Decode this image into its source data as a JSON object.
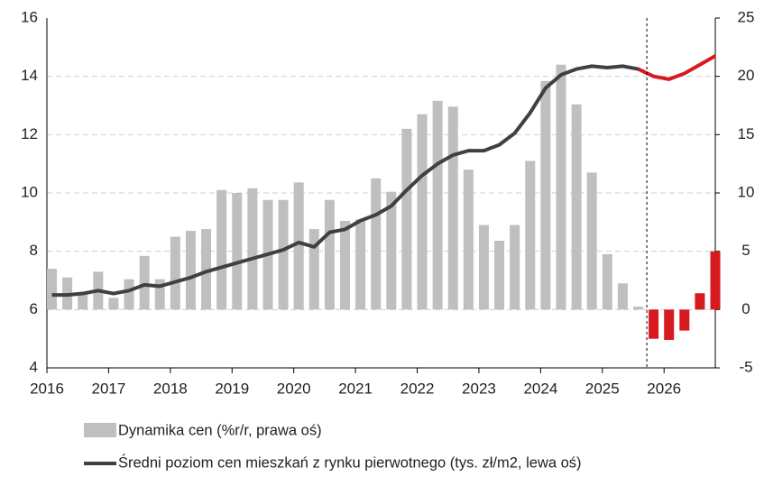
{
  "chart_data": {
    "type": "combo",
    "x": [
      2016,
      2016.25,
      2016.5,
      2016.75,
      2017,
      2017.25,
      2017.5,
      2017.75,
      2018,
      2018.25,
      2018.5,
      2018.75,
      2019,
      2019.25,
      2019.5,
      2019.75,
      2020,
      2020.25,
      2020.5,
      2020.75,
      2021,
      2021.25,
      2021.5,
      2021.75,
      2022,
      2022.25,
      2022.5,
      2022.75,
      2023,
      2023.25,
      2023.5,
      2023.75,
      2024,
      2024.25,
      2024.5,
      2024.75,
      2025,
      2025.25,
      2025.5,
      2025.75,
      2026,
      2026.25,
      2026.5,
      2026.75
    ],
    "series": [
      {
        "name": "Dynamika cen (%r/r, prawa oś)",
        "type": "bar",
        "axis": "y2",
        "color": "#bfbfbf",
        "values": [
          3.5,
          2.75,
          1.5,
          3.25,
          1.0,
          2.6,
          4.6,
          2.6,
          6.25,
          6.75,
          6.9,
          10.25,
          10.0,
          10.4,
          9.4,
          9.4,
          10.9,
          6.9,
          9.4,
          7.6,
          7.75,
          11.25,
          10.1,
          15.5,
          16.75,
          17.9,
          17.4,
          12.0,
          7.25,
          5.9,
          7.25,
          12.75,
          19.6,
          21.0,
          17.6,
          11.75,
          4.75,
          2.25,
          0.25,
          -2.5,
          -2.6,
          -1.8,
          1.4,
          5.0
        ]
      },
      {
        "name": "Średni poziom cen mieszkań z rynku pierwotnego (tys. zł/m2, lewa oś)",
        "type": "line",
        "axis": "y",
        "color": "#404040",
        "values": [
          6.5,
          6.5,
          6.55,
          6.65,
          6.55,
          6.65,
          6.85,
          6.8,
          6.95,
          7.1,
          7.3,
          7.45,
          7.6,
          7.75,
          7.9,
          8.05,
          8.3,
          8.15,
          8.65,
          8.75,
          9.05,
          9.25,
          9.55,
          10.1,
          10.6,
          11.0,
          11.3,
          11.45,
          11.45,
          11.65,
          12.05,
          12.75,
          13.6,
          14.05,
          14.25,
          14.35,
          14.3,
          14.35,
          14.25,
          14.0,
          13.9,
          14.1,
          14.4,
          14.7
        ]
      }
    ],
    "forecast_from": 2025.75,
    "forecast_color": "#d71920",
    "xlim": [
      2016,
      2026.83
    ],
    "xticks": [
      2016,
      2017,
      2018,
      2019,
      2020,
      2021,
      2022,
      2023,
      2024,
      2025,
      2026
    ],
    "ylim": [
      4,
      16
    ],
    "yticks": [
      4,
      6,
      8,
      10,
      12,
      14,
      16
    ],
    "y2lim": [
      -5,
      25
    ],
    "y2ticks": [
      -5,
      0,
      5,
      10,
      15,
      20,
      25
    ],
    "grid": true
  }
}
